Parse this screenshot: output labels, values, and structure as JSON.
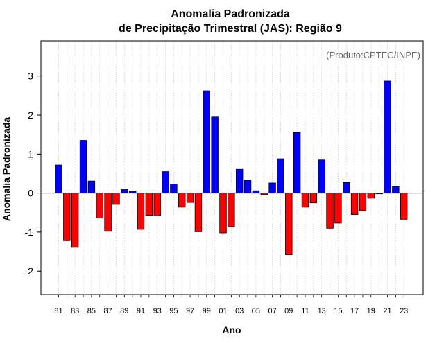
{
  "chart_data": {
    "type": "bar",
    "title_line1": "Anomalia Padronizada",
    "title_line2": "de Precipitação Trimestral (JAS): Região 9",
    "xlabel": "Ano",
    "ylabel": "Anomalia Padronizada",
    "annotation": "(Produto:CPTEC/INPE)",
    "ylim": [
      -2.6,
      3.9
    ],
    "yticks": [
      -2,
      -1,
      0,
      1,
      2,
      3
    ],
    "ytick_labels": [
      "-2",
      "-1",
      "0",
      "1",
      "2",
      "3"
    ],
    "xtick_labels": [
      "81",
      "83",
      "85",
      "87",
      "89",
      "91",
      "93",
      "95",
      "97",
      "99",
      "01",
      "03",
      "05",
      "07",
      "09",
      "11",
      "13",
      "15",
      "17",
      "19",
      "21",
      "23"
    ],
    "categories": [
      "1981",
      "1982",
      "1983",
      "1984",
      "1985",
      "1986",
      "1987",
      "1988",
      "1989",
      "1990",
      "1991",
      "1992",
      "1993",
      "1994",
      "1995",
      "1996",
      "1997",
      "1998",
      "1999",
      "2000",
      "2001",
      "2002",
      "2003",
      "2004",
      "2005",
      "2006",
      "2007",
      "2008",
      "2009",
      "2010",
      "2011",
      "2012",
      "2013",
      "2014",
      "2015",
      "2016",
      "2017",
      "2018",
      "2019",
      "2020",
      "2021",
      "2022",
      "2023"
    ],
    "values": [
      0.72,
      -1.22,
      -1.39,
      1.35,
      0.31,
      -0.64,
      -0.98,
      -0.29,
      0.09,
      0.05,
      -0.93,
      -0.57,
      -0.58,
      0.55,
      0.23,
      -0.36,
      -0.24,
      -0.99,
      2.62,
      1.95,
      -1.02,
      -0.86,
      0.61,
      0.33,
      0.06,
      -0.04,
      0.26,
      0.88,
      -1.58,
      1.55,
      -0.36,
      -0.25,
      0.85,
      -0.9,
      -0.77,
      0.27,
      -0.55,
      -0.45,
      -0.13,
      -0.02,
      2.87,
      0.17,
      -0.67
    ],
    "colors": {
      "positive": "#0000ff",
      "negative": "#ff0000",
      "stroke": "#000000",
      "annotation": "#666666",
      "grid": "#c8c8c8"
    }
  }
}
